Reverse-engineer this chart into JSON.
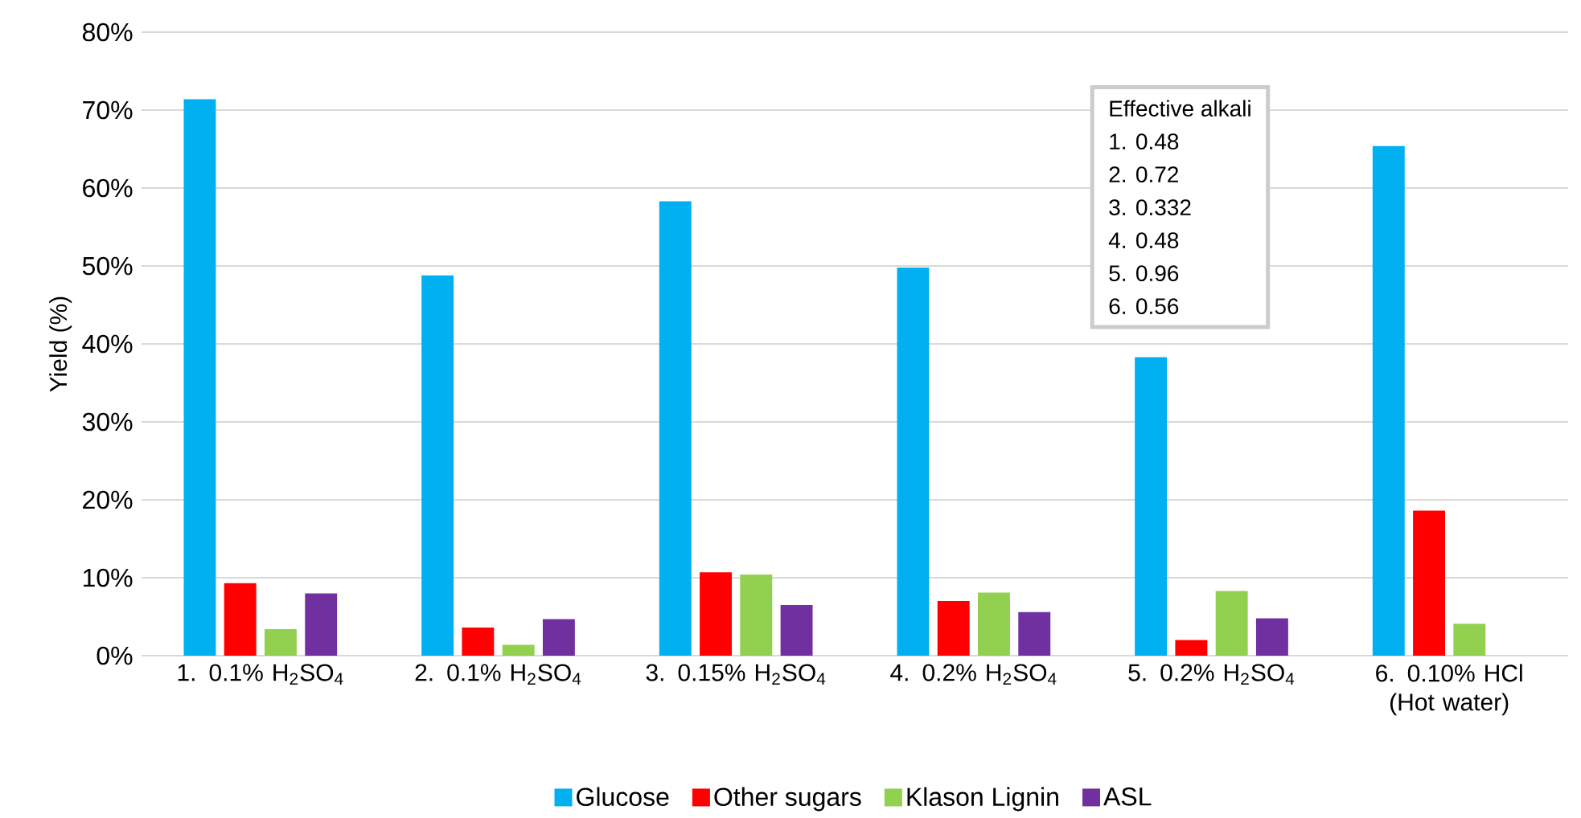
{
  "chart_data": {
    "type": "bar",
    "ylabel": "Yield (%)",
    "categories": [
      "1. 0.1% H$_{2}$SO$_{4}$",
      "2. 0.1% H$_{2}$SO$_{4}$",
      "3. 0.15% H$_{2}$SO$_{4}$",
      "4. 0.2% H$_{2}$SO$_{4}$",
      "5. 0.2% H$_{2}$SO$_{4}$",
      "6. 0.10% HCl (Hot water)"
    ],
    "series": [
      {
        "name": "Glucose",
        "color": "#00b0f0",
        "values": [
          71.4,
          48.8,
          58.3,
          49.8,
          38.3,
          65.4
        ]
      },
      {
        "name": "Other sugars",
        "color": "#ff0000",
        "values": [
          9.3,
          3.6,
          10.7,
          7.0,
          2.0,
          18.6
        ]
      },
      {
        "name": "Klason Lignin",
        "color": "#92d050",
        "values": [
          3.4,
          1.4,
          10.4,
          8.1,
          8.3,
          4.1
        ]
      },
      {
        "name": "ASL",
        "color": "#7030a0",
        "values": [
          8.0,
          4.7,
          6.5,
          5.6,
          4.8,
          null
        ]
      }
    ],
    "ylim": [
      0,
      80
    ],
    "yticks": [
      {
        "value": 0,
        "label": "0%"
      },
      {
        "value": 10,
        "label": "10%"
      },
      {
        "value": 20,
        "label": "20%"
      },
      {
        "value": 30,
        "label": "30%"
      },
      {
        "value": 40,
        "label": "40%"
      },
      {
        "value": 50,
        "label": "50%"
      },
      {
        "value": 60,
        "label": "60%"
      },
      {
        "value": 70,
        "label": "70%"
      },
      {
        "value": 80,
        "label": "80%"
      }
    ],
    "grid": "y",
    "legend": "bottom",
    "annotations": [
      "Effective alkali",
      "1. 0.48",
      "2. 0.72",
      "3. 0.332",
      "4. 0.48",
      "5. 0.96",
      "6. 0.56"
    ]
  }
}
